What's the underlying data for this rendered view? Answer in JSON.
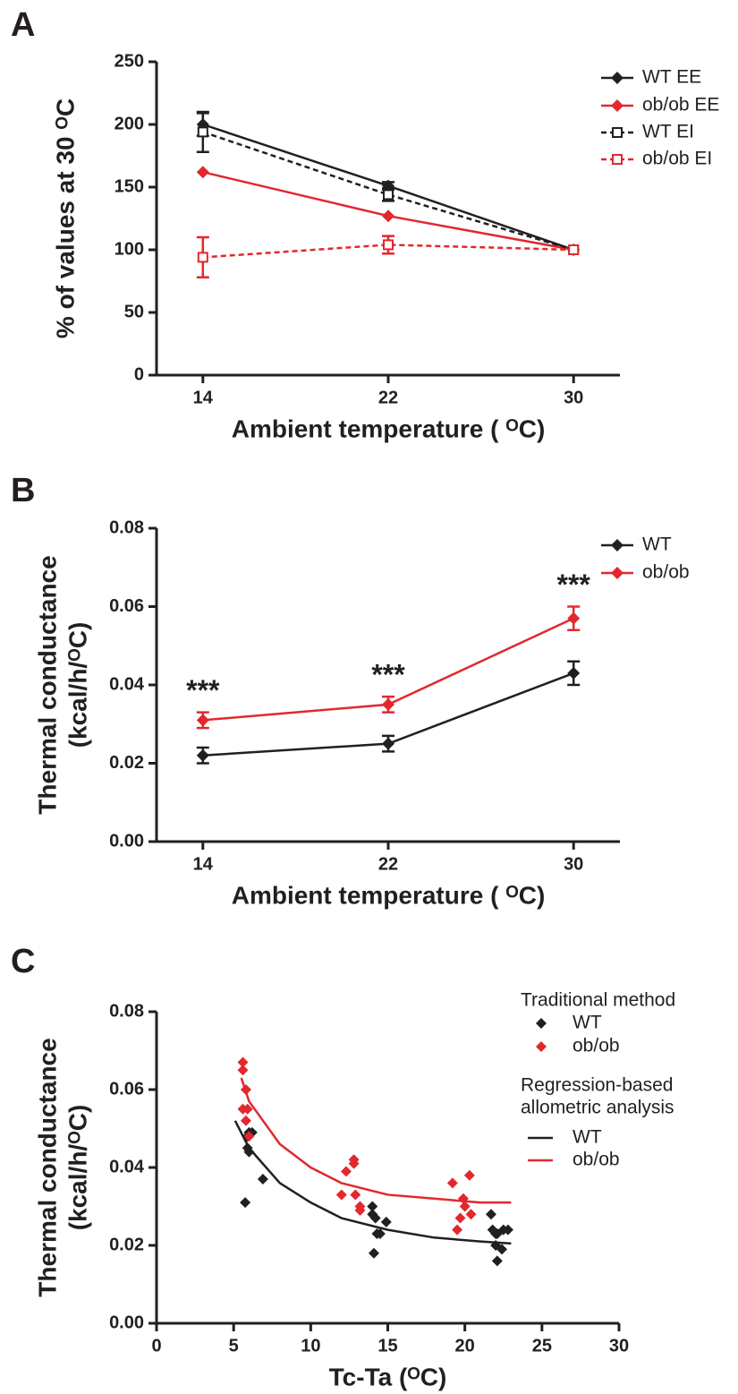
{
  "chart_data": [
    {
      "type": "line",
      "panel": "A",
      "xlabel": "Ambient temperature ( ᴼC)",
      "ylabel": "% of values at 30 ᴼC",
      "x": [
        14,
        22,
        30
      ],
      "xlim": [
        12,
        32
      ],
      "xticks": [
        14,
        22,
        30
      ],
      "ylim": [
        0,
        250
      ],
      "yticks": [
        0,
        50,
        100,
        150,
        200,
        250
      ],
      "series": [
        {
          "name": "WT EE",
          "color": "#231f20",
          "marker": "diamond",
          "line": "solid",
          "values": [
            200,
            151,
            100
          ],
          "errors": [
            9,
            3,
            null
          ]
        },
        {
          "name": "ob/ob EE",
          "color": "#e2282d",
          "marker": "diamond",
          "line": "solid",
          "values": [
            162,
            127,
            100
          ]
        },
        {
          "name": "WT EI",
          "color": "#231f20",
          "marker": "square",
          "line": "dashed",
          "values": [
            194,
            144,
            100
          ],
          "errors": [
            16,
            5,
            null
          ]
        },
        {
          "name": "ob/ob EI",
          "color": "#e2282d",
          "marker": "square",
          "line": "dashed",
          "values": [
            94,
            104,
            100
          ],
          "errors": [
            16,
            7,
            null
          ]
        }
      ]
    },
    {
      "type": "line",
      "panel": "B",
      "xlabel": "Ambient temperature ( ᴼC)",
      "ylabel": [
        "Thermal conductance",
        "(kcal/h/ᴼC)"
      ],
      "x": [
        14,
        22,
        30
      ],
      "xlim": [
        12,
        32
      ],
      "xticks": [
        14,
        22,
        30
      ],
      "ylim": [
        0,
        0.08
      ],
      "yticks": [
        {
          "value": 0,
          "label": "0.00"
        },
        0.02,
        0.04,
        0.06,
        0.08
      ],
      "annotations": [
        "***",
        "***",
        "***"
      ],
      "series": [
        {
          "name": "WT",
          "color": "#231f20",
          "marker": "diamond",
          "line": "solid",
          "values": [
            0.022,
            0.025,
            0.043
          ],
          "errors": [
            0.002,
            0.002,
            0.003
          ]
        },
        {
          "name": "ob/ob",
          "color": "#e2282d",
          "marker": "diamond",
          "line": "solid",
          "values": [
            0.031,
            0.035,
            0.057
          ],
          "errors": [
            0.002,
            0.002,
            0.003
          ]
        }
      ]
    },
    {
      "type": "scatter",
      "panel": "C",
      "xlabel": "Tc-Ta (ᴼC)",
      "ylabel": [
        "Thermal conductance",
        "(kcal/h/ᴼC)"
      ],
      "xlim": [
        0,
        30
      ],
      "xticks": [
        0,
        5,
        10,
        15,
        20,
        25,
        30
      ],
      "ylim": [
        0,
        0.08
      ],
      "yticks": [
        {
          "value": 0,
          "label": "0.00"
        },
        0.02,
        0.04,
        0.06,
        0.08
      ],
      "legend_titles": [
        "Traditional method",
        "Regression-based",
        "allometric analysis"
      ],
      "series": [
        {
          "name": "WT",
          "color": "#231f20",
          "style": "points",
          "x": [
            5.75,
            5.9,
            6.0,
            6.2,
            5.9,
            6.0,
            6.9,
            14.0,
            14.0,
            14.2,
            14.3,
            14.5,
            14.9,
            14.1,
            21.7,
            21.8,
            22.0,
            22.1,
            22.5,
            22.8,
            22.0,
            22.1,
            22.4
          ],
          "values": [
            0.031,
            0.048,
            0.049,
            0.049,
            0.045,
            0.044,
            0.037,
            0.03,
            0.028,
            0.027,
            0.023,
            0.023,
            0.026,
            0.018,
            0.028,
            0.024,
            0.023,
            0.023,
            0.024,
            0.024,
            0.02,
            0.016,
            0.019
          ]
        },
        {
          "name": "ob/ob",
          "color": "#e2282d",
          "style": "points",
          "x": [
            5.6,
            5.6,
            5.8,
            5.6,
            5.9,
            5.8,
            6.0,
            12.0,
            12.3,
            12.8,
            12.8,
            12.9,
            13.2,
            13.2,
            19.2,
            19.5,
            19.7,
            19.9,
            20.0,
            20.3,
            20.4
          ],
          "values": [
            0.067,
            0.065,
            0.06,
            0.055,
            0.055,
            0.052,
            0.048,
            0.033,
            0.039,
            0.042,
            0.041,
            0.033,
            0.03,
            0.029,
            0.036,
            0.024,
            0.027,
            0.032,
            0.03,
            0.038,
            0.028
          ]
        },
        {
          "name": "WT",
          "color": "#231f20",
          "style": "line",
          "x": [
            5.1,
            6,
            8,
            10,
            12,
            15,
            18,
            21,
            23
          ],
          "values": [
            0.052,
            0.045,
            0.036,
            0.031,
            0.027,
            0.024,
            0.022,
            0.021,
            0.0205
          ]
        },
        {
          "name": "ob/ob",
          "color": "#e2282d",
          "style": "line",
          "x": [
            5.5,
            6,
            8,
            10,
            12,
            15,
            18,
            21,
            23
          ],
          "values": [
            0.063,
            0.057,
            0.046,
            0.04,
            0.036,
            0.033,
            0.032,
            0.031,
            0.031
          ]
        }
      ]
    }
  ]
}
